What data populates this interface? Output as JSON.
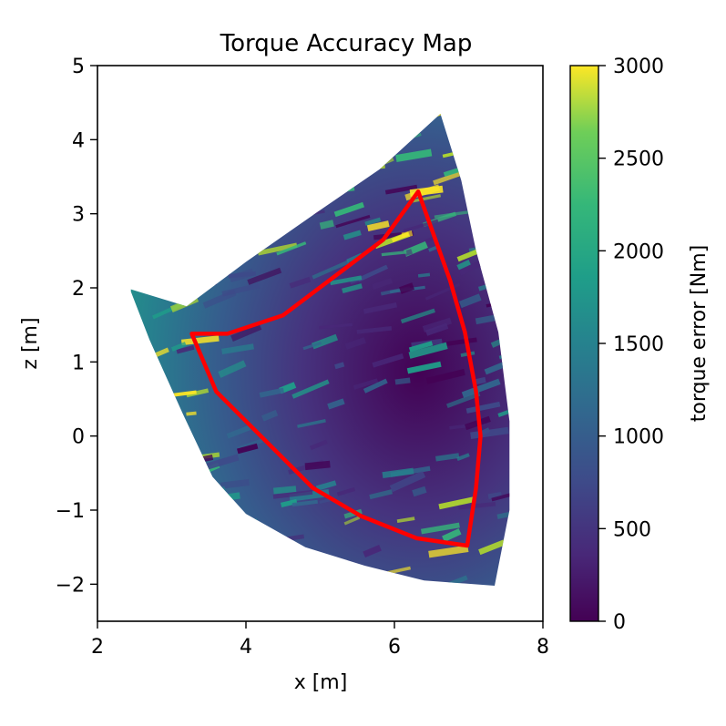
{
  "chart_data": {
    "type": "heatmap",
    "title": "Torque Accuracy Map",
    "xlabel": "x [m]",
    "ylabel": "z [m]",
    "xlim": [
      2,
      8
    ],
    "ylim": [
      -2.5,
      5
    ],
    "xticks": [
      2,
      4,
      6,
      8
    ],
    "yticks": [
      -2,
      -1,
      0,
      1,
      2,
      3,
      4,
      5
    ],
    "xtick_labels": [
      "2",
      "4",
      "6",
      "8"
    ],
    "ytick_labels": [
      "−2",
      "−1",
      "0",
      "1",
      "2",
      "3",
      "4",
      "5"
    ],
    "colormap": "viridis",
    "grid": false,
    "colorbar": {
      "label": "torque error [Nm]",
      "range": [
        0,
        3000
      ],
      "ticks": [
        0,
        500,
        1000,
        1500,
        2000,
        2500,
        3000
      ],
      "tick_labels": [
        "0",
        "500",
        "1000",
        "1500",
        "2000",
        "2500",
        "3000"
      ]
    },
    "region_outline": [
      [
        6.62,
        4.35
      ],
      [
        5.8,
        3.6
      ],
      [
        5.0,
        3.05
      ],
      [
        4.0,
        2.35
      ],
      [
        3.2,
        1.75
      ],
      [
        2.45,
        1.98
      ],
      [
        2.45,
        1.95
      ],
      [
        2.7,
        1.3
      ],
      [
        3.15,
        0.3
      ],
      [
        3.55,
        -0.55
      ],
      [
        4.0,
        -1.05
      ],
      [
        4.8,
        -1.5
      ],
      [
        5.6,
        -1.75
      ],
      [
        6.4,
        -1.95
      ],
      [
        7.35,
        -2.02
      ],
      [
        7.55,
        -1.0
      ],
      [
        7.55,
        0.2
      ],
      [
        7.4,
        1.4
      ],
      [
        7.1,
        2.5
      ],
      [
        6.9,
        3.45
      ],
      [
        6.62,
        4.35
      ]
    ],
    "boundary_polygon": {
      "color": "#ff0000",
      "points": [
        [
          6.32,
          3.3
        ],
        [
          5.85,
          2.65
        ],
        [
          4.5,
          1.63
        ],
        [
          3.75,
          1.38
        ],
        [
          3.27,
          1.38
        ],
        [
          3.6,
          0.6
        ],
        [
          4.9,
          -0.7
        ],
        [
          5.55,
          -1.08
        ],
        [
          6.3,
          -1.38
        ],
        [
          6.98,
          -1.48
        ],
        [
          7.1,
          -0.7
        ],
        [
          7.16,
          0.0
        ],
        [
          7.1,
          0.6
        ],
        [
          6.95,
          1.4
        ],
        [
          6.75,
          2.1
        ],
        [
          6.32,
          3.3
        ]
      ]
    }
  }
}
